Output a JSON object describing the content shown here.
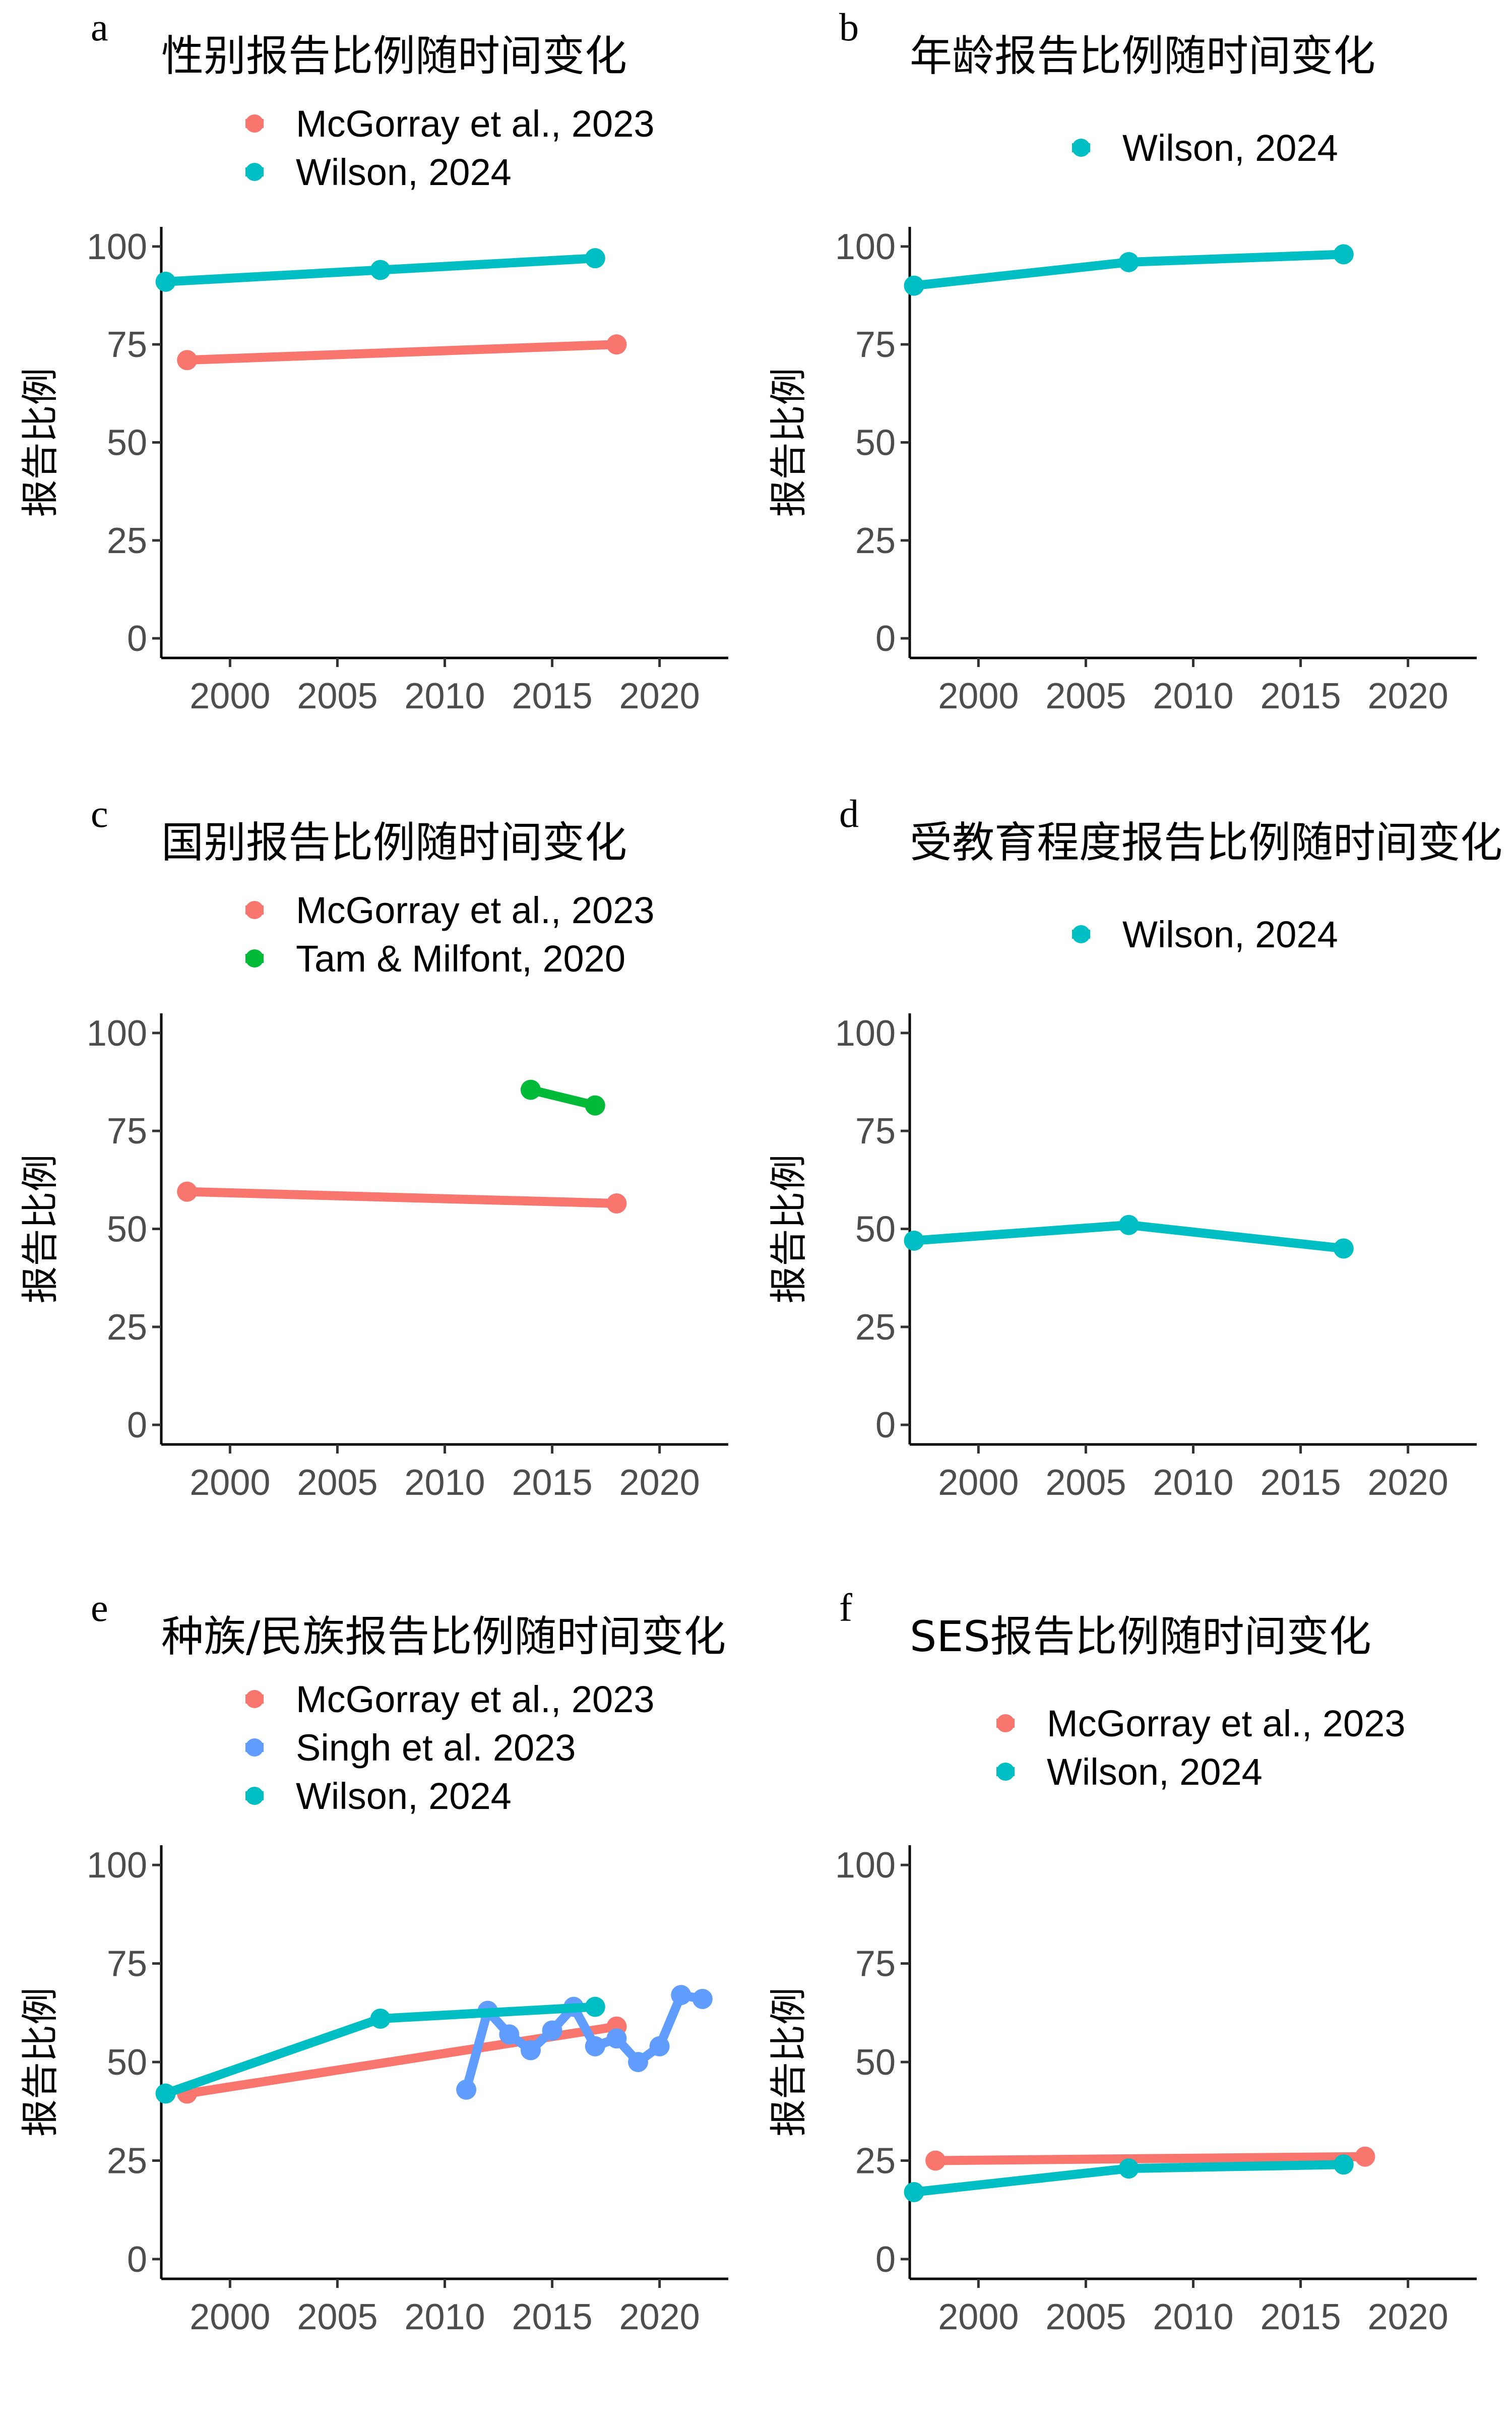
{
  "chart_data": [
    {
      "type": "line",
      "panel": "a",
      "title": "性别报告比例随时间变化",
      "ylabel": "报告比例",
      "xlabel": "",
      "xlim": [
        1996.8,
        2023.2
      ],
      "ylim": [
        -5,
        105
      ],
      "xticks": [
        2000,
        2005,
        2010,
        2015,
        2020
      ],
      "yticks": [
        0,
        25,
        50,
        75,
        100
      ],
      "legend_position": "top",
      "series": [
        {
          "name": "McGorray et al., 2023",
          "color": "#F8766D",
          "x": [
            1998,
            2018
          ],
          "y": [
            71,
            75
          ]
        },
        {
          "name": "Wilson, 2024",
          "color": "#00BFC4",
          "x": [
            1997,
            2007,
            2017
          ],
          "y": [
            91,
            94,
            97
          ]
        }
      ]
    },
    {
      "type": "line",
      "panel": "b",
      "title": "年龄报告比例随时间变化",
      "ylabel": "报告比例",
      "xlabel": "",
      "xlim": [
        1996.8,
        2023.2
      ],
      "ylim": [
        -5,
        105
      ],
      "xticks": [
        2000,
        2005,
        2010,
        2015,
        2020
      ],
      "yticks": [
        0,
        25,
        50,
        75,
        100
      ],
      "legend_position": "top",
      "series": [
        {
          "name": "Wilson, 2024",
          "color": "#00BFC4",
          "x": [
            1997,
            2007,
            2017
          ],
          "y": [
            90,
            96,
            98
          ]
        }
      ]
    },
    {
      "type": "line",
      "panel": "c",
      "title": "国别报告比例随时间变化",
      "ylabel": "报告比例",
      "xlabel": "",
      "xlim": [
        1996.8,
        2023.2
      ],
      "ylim": [
        -5,
        105
      ],
      "xticks": [
        2000,
        2005,
        2010,
        2015,
        2020
      ],
      "yticks": [
        0,
        25,
        50,
        75,
        100
      ],
      "legend_position": "top",
      "series": [
        {
          "name": "McGorray et al., 2023",
          "color": "#F8766D",
          "x": [
            1998,
            2018
          ],
          "y": [
            59.5,
            56.5
          ]
        },
        {
          "name": "Tam & Milfont, 2020",
          "color": "#00BA38",
          "x": [
            2014,
            2017
          ],
          "y": [
            85.5,
            81.5
          ]
        }
      ]
    },
    {
      "type": "line",
      "panel": "d",
      "title": "受教育程度报告比例随时间变化",
      "ylabel": "报告比例",
      "xlabel": "",
      "xlim": [
        1996.8,
        2023.2
      ],
      "ylim": [
        -5,
        105
      ],
      "xticks": [
        2000,
        2005,
        2010,
        2015,
        2020
      ],
      "yticks": [
        0,
        25,
        50,
        75,
        100
      ],
      "legend_position": "top",
      "series": [
        {
          "name": "Wilson, 2024",
          "color": "#00BFC4",
          "x": [
            1997,
            2007,
            2017
          ],
          "y": [
            47,
            51,
            45
          ]
        }
      ]
    },
    {
      "type": "line",
      "panel": "e",
      "title": "种族/民族报告比例随时间变化",
      "ylabel": "报告比例",
      "xlabel": "",
      "xlim": [
        1996.8,
        2023.2
      ],
      "ylim": [
        -5,
        105
      ],
      "xticks": [
        2000,
        2005,
        2010,
        2015,
        2020
      ],
      "yticks": [
        0,
        25,
        50,
        75,
        100
      ],
      "legend_position": "top",
      "series": [
        {
          "name": "McGorray et al., 2023",
          "color": "#F8766D",
          "x": [
            1998,
            2018
          ],
          "y": [
            42,
            59
          ]
        },
        {
          "name": "Singh et al. 2023",
          "color": "#619CFF",
          "x": [
            2011,
            2012,
            2013,
            2014,
            2015,
            2016,
            2017,
            2018,
            2019,
            2020,
            2021,
            2022
          ],
          "y": [
            43,
            63,
            57,
            53,
            58,
            64,
            54,
            56,
            50,
            54,
            67,
            66
          ]
        },
        {
          "name": "Wilson, 2024",
          "color": "#00BFC4",
          "x": [
            1997,
            2007,
            2017
          ],
          "y": [
            42,
            61,
            64
          ]
        }
      ]
    },
    {
      "type": "line",
      "panel": "f",
      "title": "SES报告比例随时间变化",
      "ylabel": "报告比例",
      "xlabel": "",
      "xlim": [
        1996.8,
        2023.2
      ],
      "ylim": [
        -5,
        105
      ],
      "xticks": [
        2000,
        2005,
        2010,
        2015,
        2020
      ],
      "yticks": [
        0,
        25,
        50,
        75,
        100
      ],
      "legend_position": "top",
      "series": [
        {
          "name": "McGorray et al., 2023",
          "color": "#F8766D",
          "x": [
            1998,
            2018
          ],
          "y": [
            25,
            26
          ]
        },
        {
          "name": "Wilson, 2024",
          "color": "#00BFC4",
          "x": [
            1997,
            2007,
            2017
          ],
          "y": [
            17,
            23,
            24
          ]
        }
      ]
    }
  ]
}
